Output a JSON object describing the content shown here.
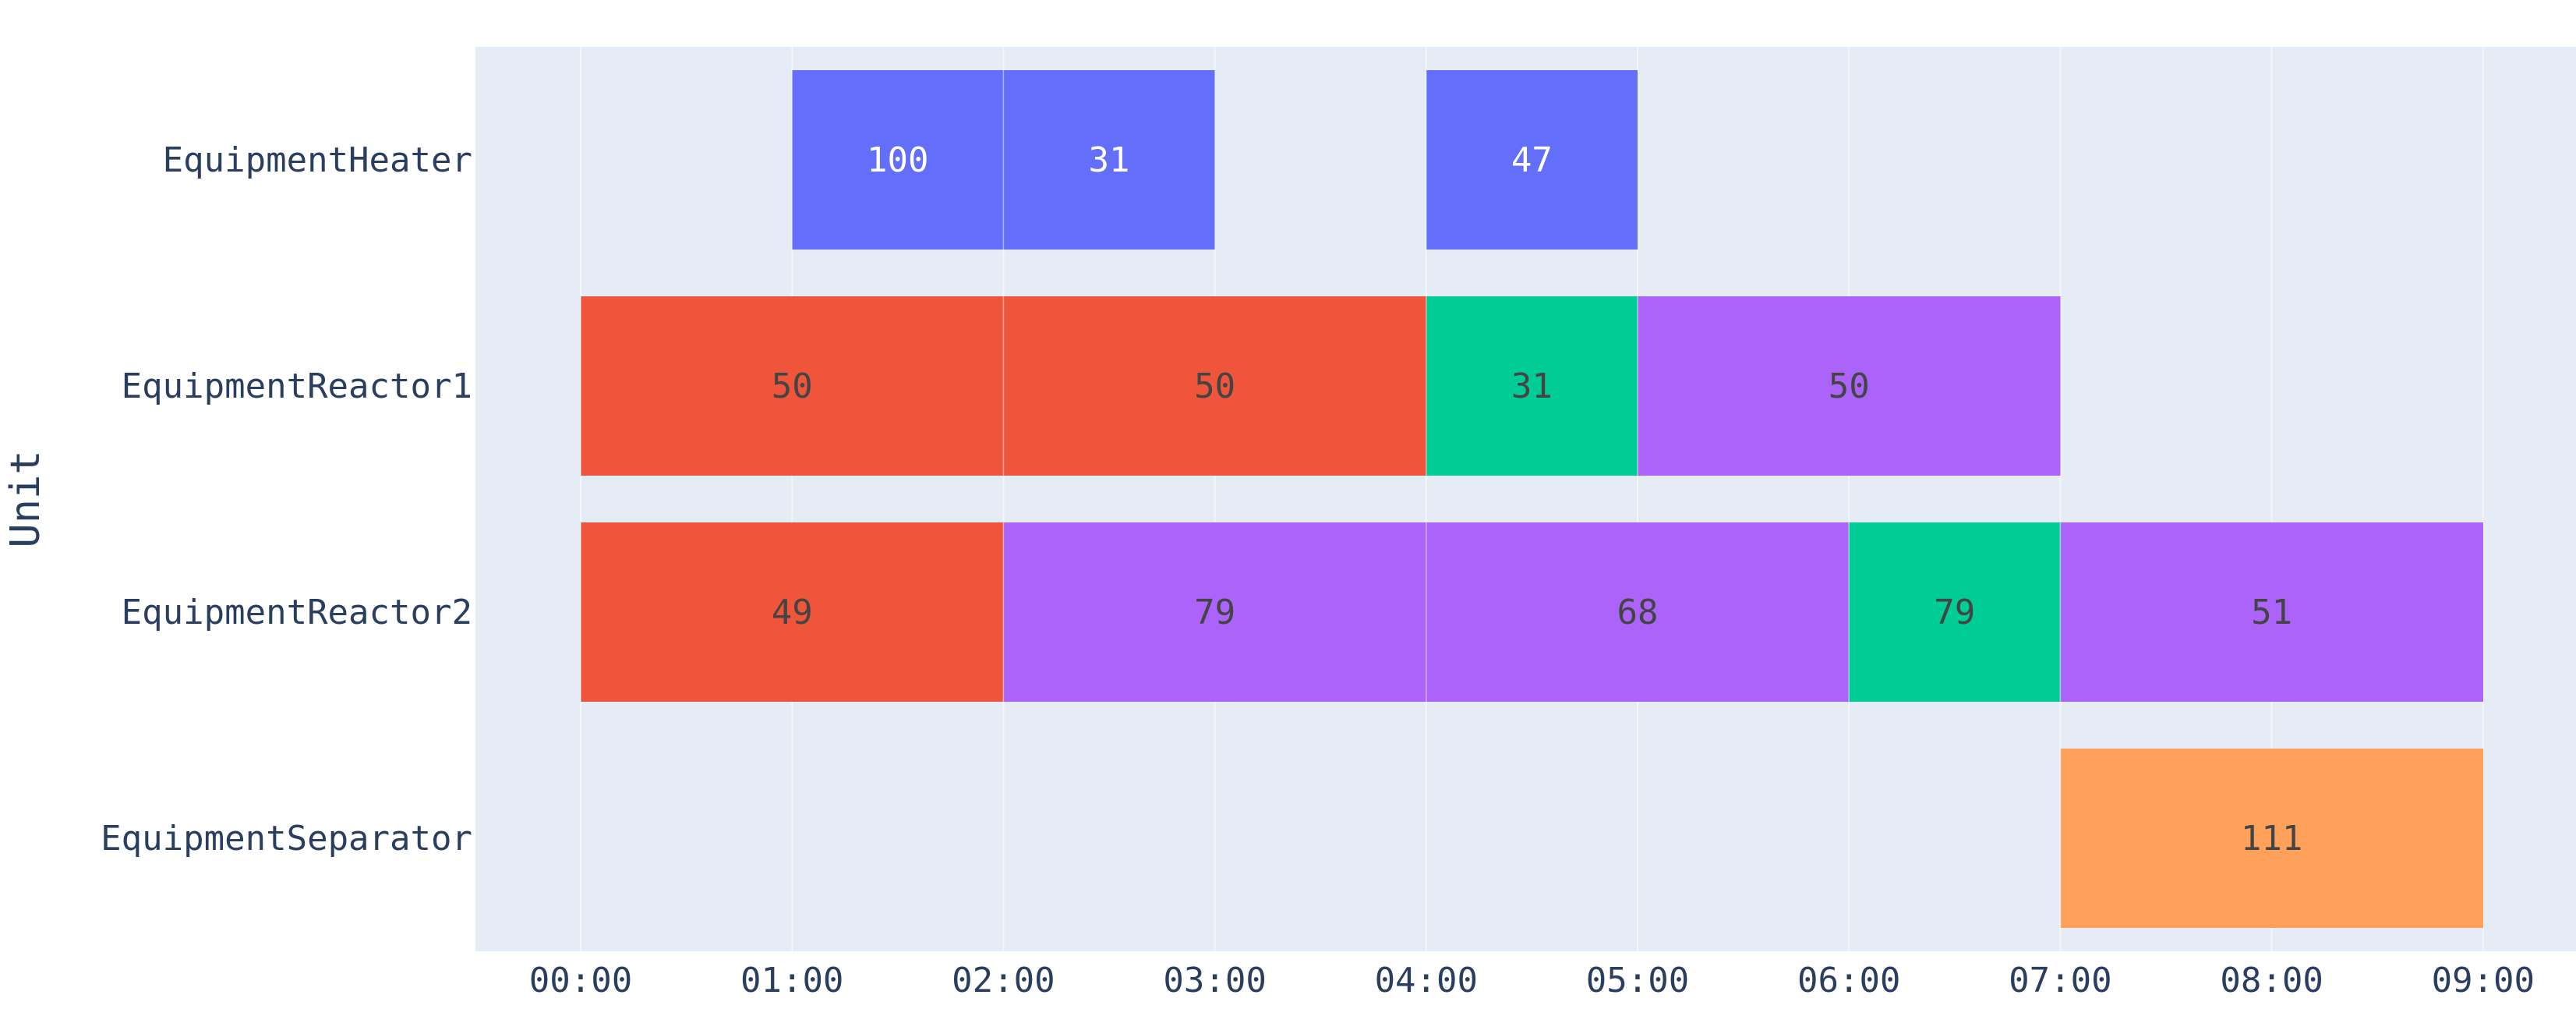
{
  "chart_data": {
    "type": "gantt",
    "ylabel": "Unit",
    "xlabel": "",
    "x_ticks": [
      "00:00",
      "01:00",
      "02:00",
      "03:00",
      "04:00",
      "05:00",
      "06:00",
      "07:00",
      "08:00",
      "09:00"
    ],
    "xlim": [
      -0.5,
      9.45
    ],
    "categories": [
      "EquipmentHeater",
      "EquipmentReactor1",
      "EquipmentReactor2",
      "EquipmentSeparator"
    ],
    "colors": {
      "blue": "#636EFA",
      "red": "#EF553B",
      "green": "#00CC96",
      "purple": "#AB63FA",
      "orange": "#FFA15A"
    },
    "tasks": [
      {
        "unit": "EquipmentHeater",
        "start": 1,
        "end": 2,
        "label": "100",
        "color": "blue"
      },
      {
        "unit": "EquipmentHeater",
        "start": 2,
        "end": 3,
        "label": "31",
        "color": "blue"
      },
      {
        "unit": "EquipmentHeater",
        "start": 4,
        "end": 5,
        "label": "47",
        "color": "blue"
      },
      {
        "unit": "EquipmentReactor1",
        "start": 0,
        "end": 2,
        "label": "50",
        "color": "red"
      },
      {
        "unit": "EquipmentReactor1",
        "start": 2,
        "end": 4,
        "label": "50",
        "color": "red"
      },
      {
        "unit": "EquipmentReactor1",
        "start": 4,
        "end": 5,
        "label": "31",
        "color": "green"
      },
      {
        "unit": "EquipmentReactor1",
        "start": 5,
        "end": 7,
        "label": "50",
        "color": "purple"
      },
      {
        "unit": "EquipmentReactor2",
        "start": 0,
        "end": 2,
        "label": "49",
        "color": "red"
      },
      {
        "unit": "EquipmentReactor2",
        "start": 2,
        "end": 4,
        "label": "79",
        "color": "purple"
      },
      {
        "unit": "EquipmentReactor2",
        "start": 4,
        "end": 6,
        "label": "68",
        "color": "purple"
      },
      {
        "unit": "EquipmentReactor2",
        "start": 6,
        "end": 7,
        "label": "79",
        "color": "green"
      },
      {
        "unit": "EquipmentReactor2",
        "start": 7,
        "end": 9,
        "label": "51",
        "color": "purple"
      },
      {
        "unit": "EquipmentSeparator",
        "start": 7,
        "end": 9,
        "label": "111",
        "color": "orange"
      }
    ]
  }
}
